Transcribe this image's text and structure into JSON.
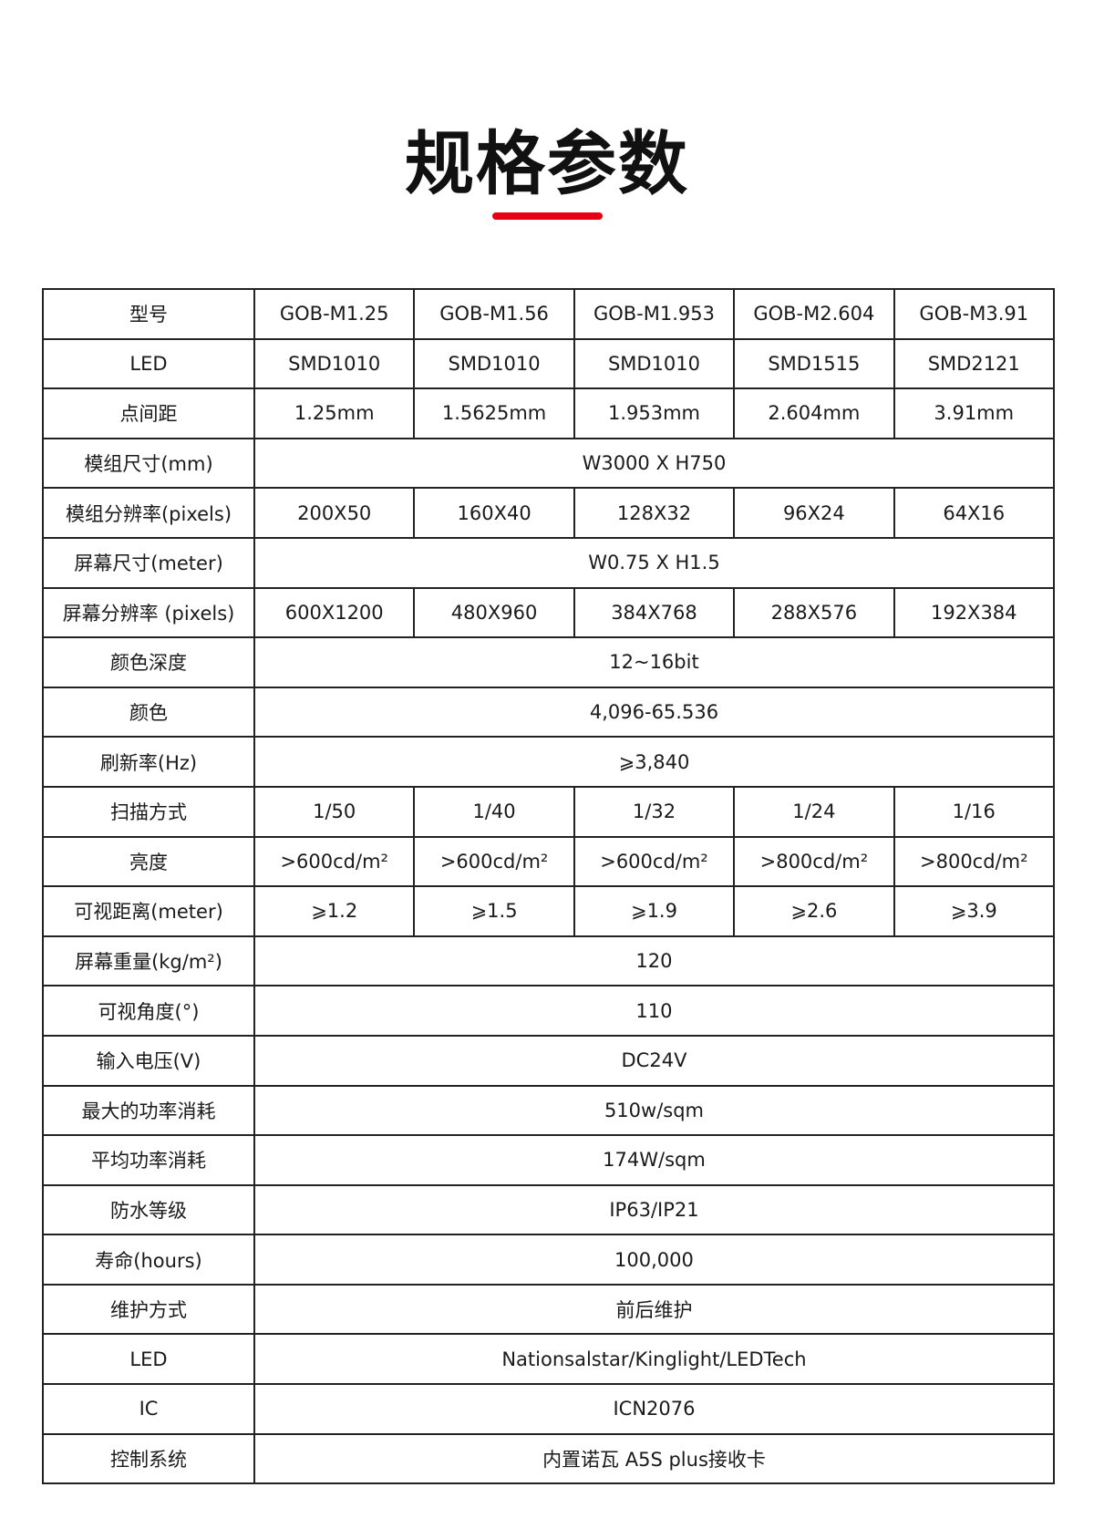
{
  "title": "规格参数",
  "accent_color": "#e60012",
  "rows": [
    {
      "label": "型号",
      "values": [
        "GOB-M1.25",
        "GOB-M1.56",
        "GOB-M1.953",
        "GOB-M2.604",
        "GOB-M3.91"
      ]
    },
    {
      "label": "LED",
      "values": [
        "SMD1010",
        "SMD1010",
        "SMD1010",
        "SMD1515",
        "SMD2121"
      ]
    },
    {
      "label": "点间距",
      "values": [
        "1.25mm",
        "1.5625mm",
        "1.953mm",
        "2.604mm",
        "3.91mm"
      ]
    },
    {
      "label": "模组尺寸(mm)",
      "value": "W3000 X H750"
    },
    {
      "label": "模组分辨率(pixels)",
      "values": [
        "200X50",
        "160X40",
        "128X32",
        "96X24",
        "64X16"
      ]
    },
    {
      "label": "屏幕尺寸(meter)",
      "value": "W0.75 X H1.5"
    },
    {
      "label": "屏幕分辨率 (pixels)",
      "values": [
        "600X1200",
        "480X960",
        "384X768",
        "288X576",
        "192X384"
      ]
    },
    {
      "label": "颜色深度",
      "value": "12~16bit"
    },
    {
      "label": "颜色",
      "value": "4,096-65.536"
    },
    {
      "label": "刷新率(Hz)",
      "value": "⩾3,840"
    },
    {
      "label": "扫描方式",
      "values": [
        "1/50",
        "1/40",
        "1/32",
        "1/24",
        "1/16"
      ]
    },
    {
      "label": "亮度",
      "values": [
        ">600cd/m²",
        ">600cd/m²",
        ">600cd/m²",
        ">800cd/m²",
        ">800cd/m²"
      ]
    },
    {
      "label": "可视距离(meter)",
      "values": [
        "⩾1.2",
        "⩾1.5",
        "⩾1.9",
        "⩾2.6",
        "⩾3.9"
      ]
    },
    {
      "label": "屏幕重量(kg/m²)",
      "value": "120"
    },
    {
      "label": "可视角度(°)",
      "value": "110"
    },
    {
      "label": "输入电压(V)",
      "value": "DC24V"
    },
    {
      "label": "最大的功率消耗",
      "value": "510w/sqm"
    },
    {
      "label": "平均功率消耗",
      "value": "174W/sqm"
    },
    {
      "label": "防水等级",
      "value": "IP63/IP21"
    },
    {
      "label": "寿命(hours)",
      "value": "100,000"
    },
    {
      "label": "维护方式",
      "value": "前后维护"
    },
    {
      "label": "LED",
      "value": "Nationsalstar/Kinglight/LEDTech"
    },
    {
      "label": "IC",
      "value": "ICN2076"
    },
    {
      "label": "控制系统",
      "value": "内置诺瓦 A5S plus接收卡"
    }
  ]
}
